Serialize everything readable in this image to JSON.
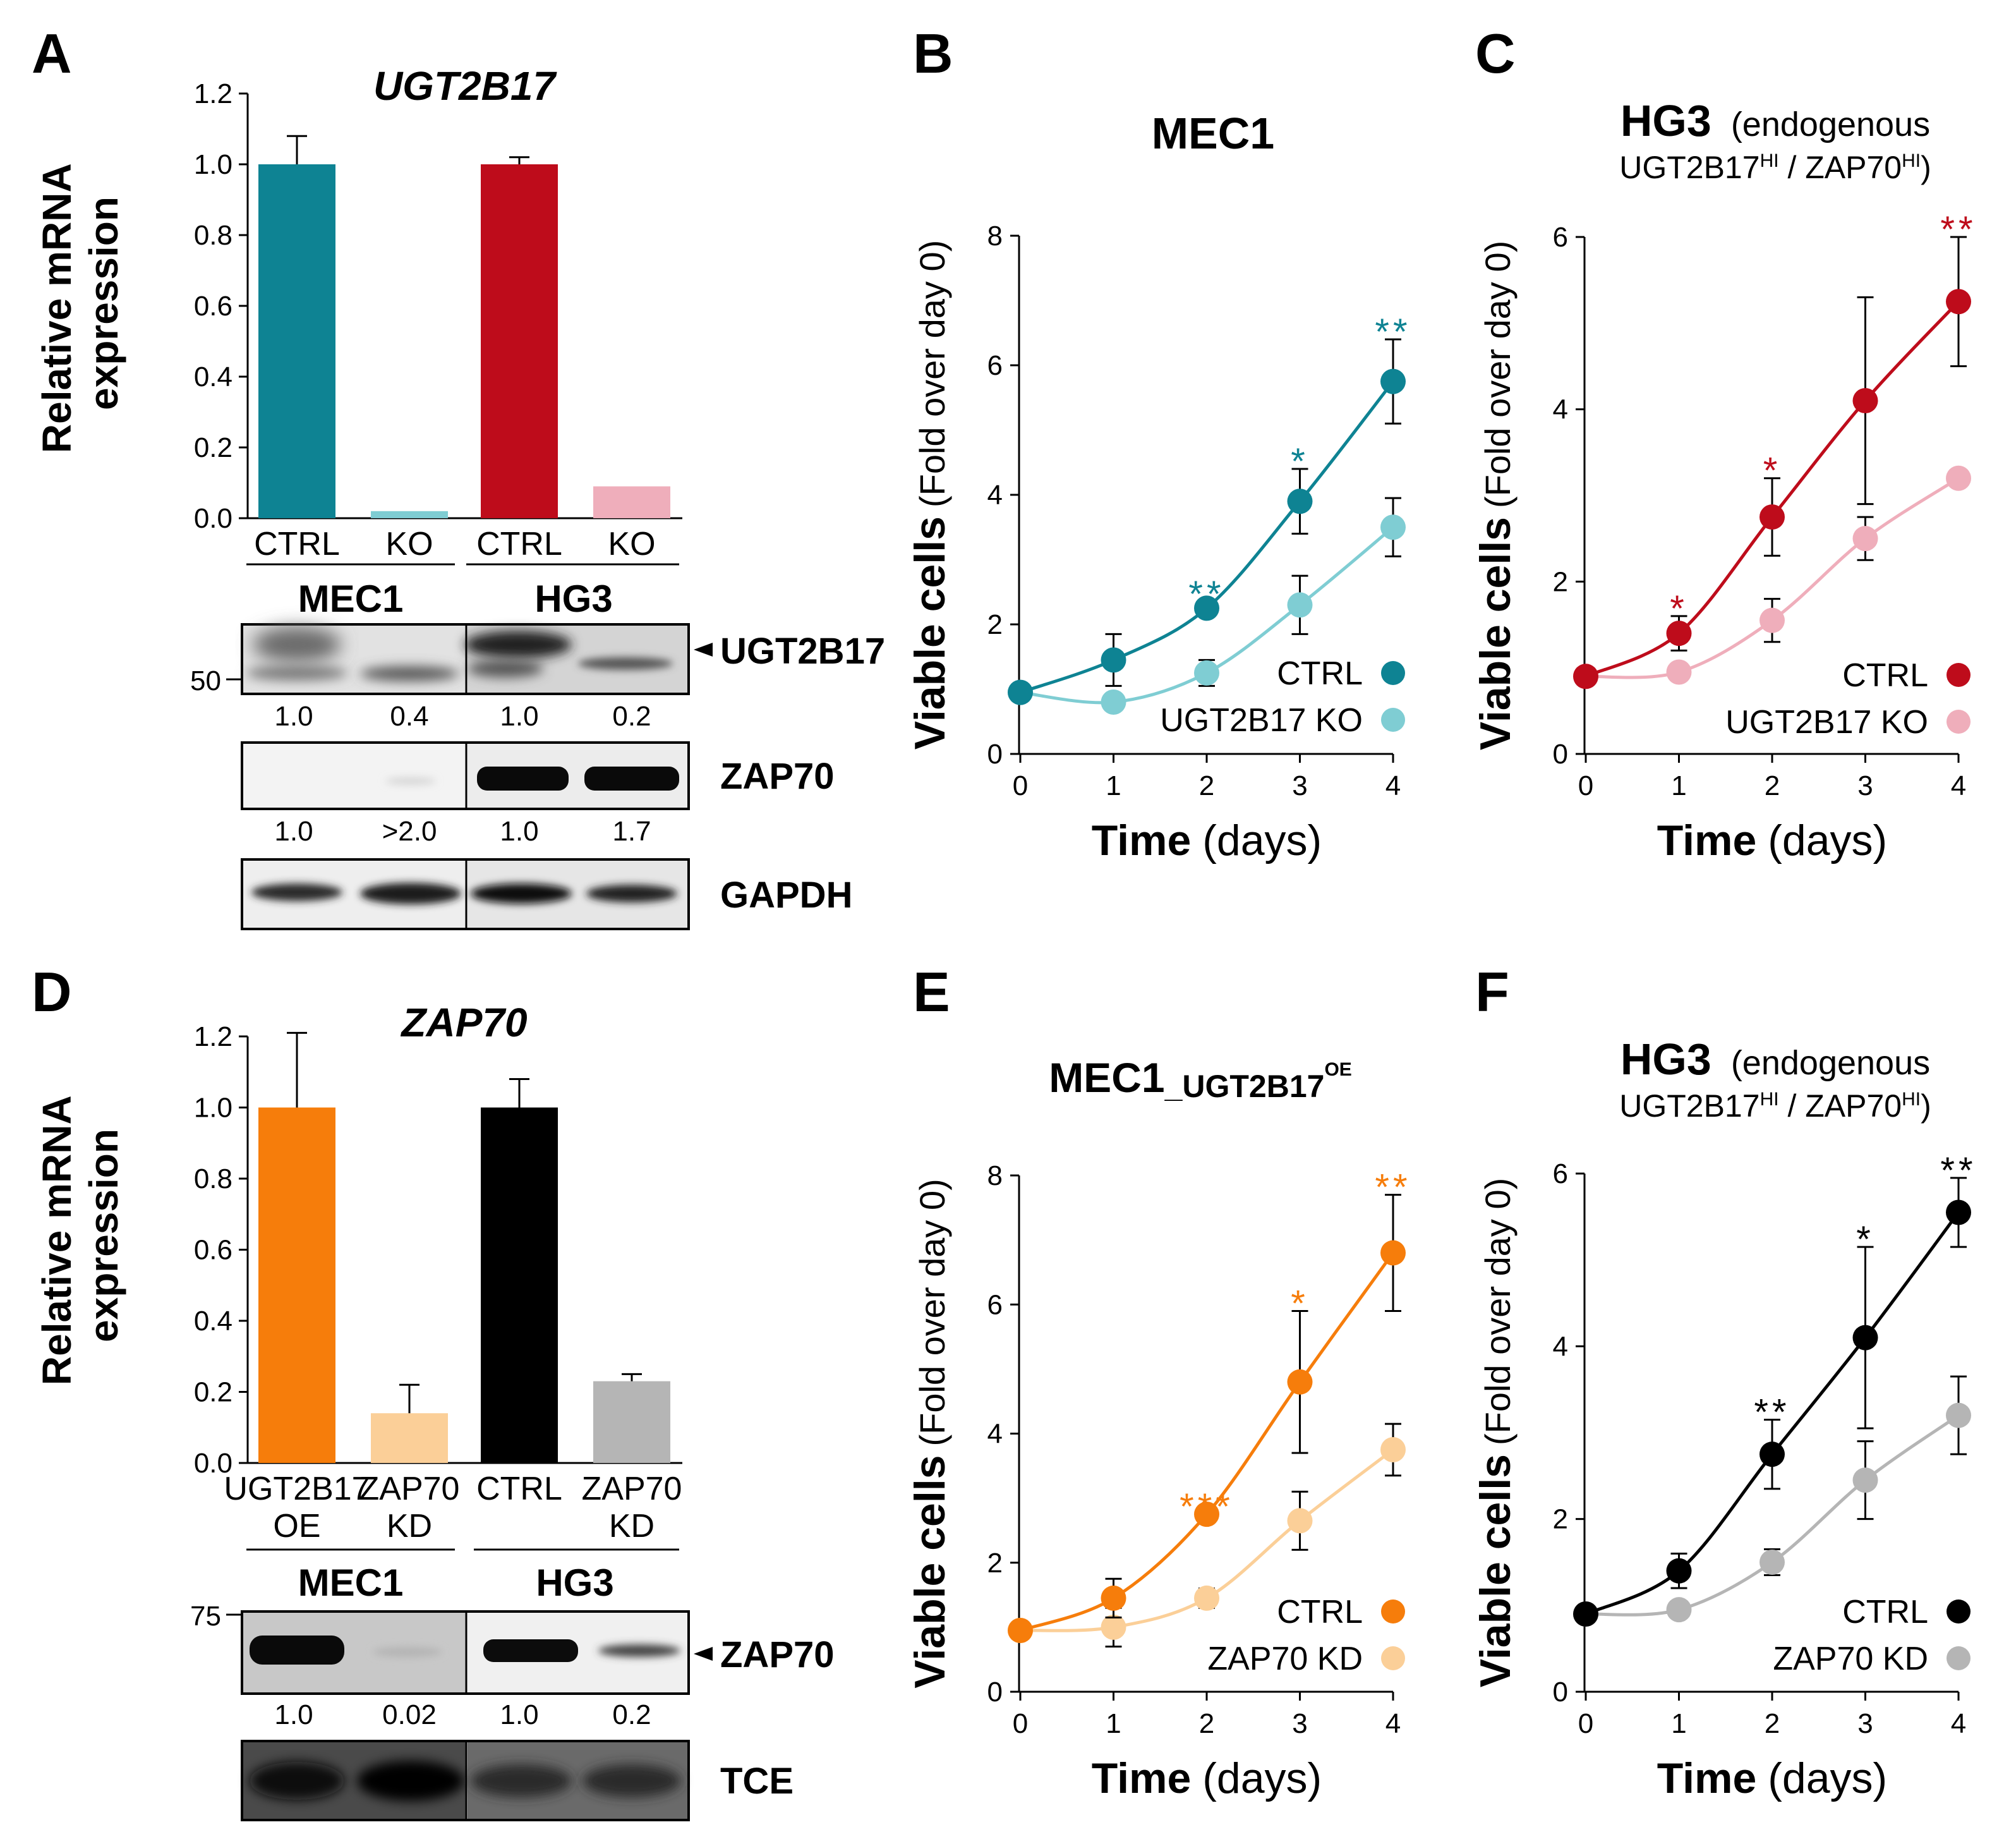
{
  "colors": {
    "teal": "#0E8393",
    "teal_light": "#7FCDD3",
    "red": "#BE0C1B",
    "red_light": "#EFAEBB",
    "orange": "#F67D0B",
    "orange_light": "#FBCF98",
    "black": "#000000",
    "gray": "#B5B5B5"
  },
  "panels": {
    "A": {
      "letter": "A"
    },
    "B": {
      "letter": "B"
    },
    "C": {
      "letter": "C"
    },
    "D": {
      "letter": "D"
    },
    "E": {
      "letter": "E"
    },
    "F": {
      "letter": "F"
    }
  },
  "chart_data": [
    {
      "id": "A",
      "type": "bar",
      "title": "UGT2B17",
      "ylabel_line1": "Relative mRNA",
      "ylabel_line2": "expression",
      "ylim": [
        0,
        1.2
      ],
      "yticks": [
        "0.0",
        "0.2",
        "0.4",
        "0.6",
        "0.8",
        "1.0",
        "1.2"
      ],
      "categories": [
        "CTRL",
        "KO",
        "CTRL",
        "KO"
      ],
      "values": [
        1.0,
        0.02,
        1.0,
        0.09
      ],
      "errors": [
        0.08,
        0.0,
        0.02,
        0.0
      ],
      "bar_colors": [
        "#0E8393",
        "#7FCDD3",
        "#BE0C1B",
        "#EFAEBB"
      ],
      "groups": [
        "MEC1",
        "HG3"
      ]
    },
    {
      "id": "B",
      "type": "line",
      "title": "MEC1",
      "title_sub": "",
      "subtitle": "",
      "ylabel_bold": "Viable cells",
      "ylabel_rest": "(Fold over day 0)",
      "xlabel_bold": "Time",
      "xlabel_rest": "(days)",
      "ylim": [
        0,
        8
      ],
      "yticks": [
        "0",
        "2",
        "4",
        "6",
        "8"
      ],
      "x": [
        0,
        1,
        2,
        3,
        4
      ],
      "xticks": [
        "0",
        "1",
        "2",
        "3",
        "4"
      ],
      "series": [
        {
          "name": "CTRL",
          "color": "#0E8393",
          "values": [
            0.95,
            1.45,
            2.25,
            3.9,
            5.75
          ],
          "errors": [
            0.0,
            0.4,
            0.1,
            0.5,
            0.65
          ]
        },
        {
          "name": "UGT2B17 KO",
          "color": "#7FCDD3",
          "values": [
            0.95,
            0.8,
            1.25,
            2.3,
            3.5
          ],
          "errors": [
            0.0,
            0.0,
            0.2,
            0.45,
            0.45
          ]
        }
      ],
      "significance": [
        "",
        "",
        "**",
        "*",
        "**"
      ],
      "sig_color": "#0E8393"
    },
    {
      "id": "C",
      "type": "line",
      "title": "HG3",
      "title_sub": "",
      "subtitle": "(endogenous",
      "subtitle2_a": "UGT2B17",
      "subtitle2_b": "HI",
      "subtitle2_c": " / ZAP70",
      "subtitle2_d": "HI",
      "subtitle2_e": ")",
      "ylabel_bold": "Viable cells",
      "ylabel_rest": "(Fold over day 0)",
      "xlabel_bold": "Time",
      "xlabel_rest": "(days)",
      "ylim": [
        0,
        6
      ],
      "yticks": [
        "0",
        "2",
        "4",
        "6"
      ],
      "x": [
        0,
        1,
        2,
        3,
        4
      ],
      "xticks": [
        "0",
        "1",
        "2",
        "3",
        "4"
      ],
      "series": [
        {
          "name": "CTRL",
          "color": "#BE0C1B",
          "values": [
            0.9,
            1.4,
            2.75,
            4.1,
            5.25
          ],
          "errors": [
            0.0,
            0.2,
            0.45,
            1.2,
            0.75
          ]
        },
        {
          "name": "UGT2B17 KO",
          "color": "#EFAEBB",
          "values": [
            0.9,
            0.95,
            1.55,
            2.5,
            3.2
          ],
          "errors": [
            0.0,
            0.0,
            0.25,
            0.25,
            0.1
          ]
        }
      ],
      "significance": [
        "",
        "*",
        "*",
        "",
        "**"
      ],
      "sig_color": "#BE0C1B"
    },
    {
      "id": "D",
      "type": "bar",
      "title": "ZAP70",
      "ylabel_line1": "Relative mRNA",
      "ylabel_line2": "expression",
      "ylim": [
        0,
        1.2
      ],
      "yticks": [
        "0.0",
        "0.2",
        "0.4",
        "0.6",
        "0.8",
        "1.0",
        "1.2"
      ],
      "categories": [
        "UGT2B17",
        "ZAP70",
        "CTRL",
        "ZAP70"
      ],
      "categories_line2": [
        "OE",
        "KD",
        "",
        "KD"
      ],
      "values": [
        1.0,
        0.14,
        1.0,
        0.23
      ],
      "errors": [
        0.21,
        0.08,
        0.08,
        0.02
      ],
      "bar_colors": [
        "#F67D0B",
        "#FBCF98",
        "#000000",
        "#B5B5B5"
      ],
      "groups": [
        "MEC1",
        "HG3"
      ]
    },
    {
      "id": "E",
      "type": "line",
      "title": "MEC1",
      "title_sub": "_UGT2B17",
      "title_sup": "OE",
      "subtitle": "",
      "ylabel_bold": "Viable cells",
      "ylabel_rest": "(Fold over day 0)",
      "xlabel_bold": "Time",
      "xlabel_rest": "(days)",
      "ylim": [
        0,
        8
      ],
      "yticks": [
        "0",
        "2",
        "4",
        "6",
        "8"
      ],
      "x": [
        0,
        1,
        2,
        3,
        4
      ],
      "xticks": [
        "0",
        "1",
        "2",
        "3",
        "4"
      ],
      "series": [
        {
          "name": "CTRL",
          "color": "#F67D0B",
          "values": [
            0.95,
            1.45,
            2.75,
            4.8,
            6.8
          ],
          "errors": [
            0.0,
            0.3,
            0.0,
            1.1,
            0.9
          ]
        },
        {
          "name": "ZAP70 KD",
          "color": "#FBCF98",
          "values": [
            0.95,
            1.0,
            1.45,
            2.65,
            3.75
          ],
          "errors": [
            0.0,
            0.3,
            0.15,
            0.45,
            0.4
          ]
        }
      ],
      "significance": [
        "",
        "",
        "***",
        "*",
        "**"
      ],
      "sig_color": "#F67D0B"
    },
    {
      "id": "F",
      "type": "line",
      "title": "HG3",
      "title_sub": "",
      "subtitle": "(endogenous",
      "subtitle2_a": "UGT2B17",
      "subtitle2_b": "HI",
      "subtitle2_c": " / ZAP70",
      "subtitle2_d": "HI",
      "subtitle2_e": ")",
      "ylabel_bold": "Viable cells",
      "ylabel_rest": "(Fold over day 0)",
      "xlabel_bold": "Time",
      "xlabel_rest": "(days)",
      "ylim": [
        0,
        6
      ],
      "yticks": [
        "0",
        "2",
        "4",
        "6"
      ],
      "x": [
        0,
        1,
        2,
        3,
        4
      ],
      "xticks": [
        "0",
        "1",
        "2",
        "3",
        "4"
      ],
      "series": [
        {
          "name": "CTRL",
          "color": "#000000",
          "values": [
            0.9,
            1.4,
            2.75,
            4.1,
            5.55
          ],
          "errors": [
            0.0,
            0.2,
            0.4,
            1.05,
            0.4
          ]
        },
        {
          "name": "ZAP70 KD",
          "color": "#B5B5B5",
          "values": [
            0.9,
            0.95,
            1.5,
            2.45,
            3.2
          ],
          "errors": [
            0.0,
            0.0,
            0.15,
            0.45,
            0.45
          ]
        }
      ],
      "significance": [
        "",
        "",
        "**",
        "*",
        "**"
      ],
      "sig_color": "#000000"
    }
  ],
  "blots": {
    "A": {
      "groups": [
        "MEC1",
        "HG3"
      ],
      "rows": [
        {
          "label": "UGT2B17",
          "arrow": true,
          "marker": "50",
          "quant": [
            "1.0",
            "0.4",
            "1.0",
            "0.2"
          ]
        },
        {
          "label": "ZAP70",
          "arrow": false,
          "marker": "",
          "quant": [
            "1.0",
            ">2.0",
            "1.0",
            "1.7"
          ]
        },
        {
          "label": "GAPDH",
          "arrow": false,
          "marker": "",
          "quant": []
        }
      ]
    },
    "D": {
      "groups": [
        "MEC1",
        "HG3"
      ],
      "rows": [
        {
          "label": "ZAP70",
          "arrow": true,
          "marker": "75",
          "quant": [
            "1.0",
            "0.02",
            "1.0",
            "0.2"
          ]
        },
        {
          "label": "TCE",
          "arrow": false,
          "marker": "",
          "quant": []
        }
      ]
    }
  }
}
